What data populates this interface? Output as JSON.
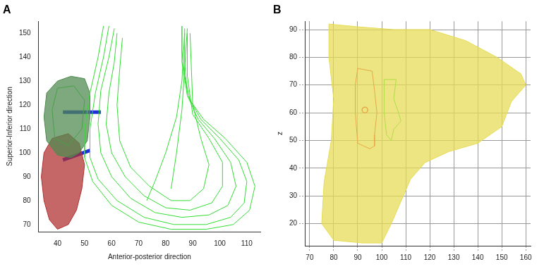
{
  "chart_data": [
    {
      "type": "line",
      "title": "A",
      "x_label": "Anterior-posterior direction",
      "y_label": "Superior-Inferior direction",
      "xlim": [
        33,
        115
      ],
      "xticks": [
        40,
        50,
        60,
        70,
        80,
        90,
        100,
        110
      ],
      "ylim": [
        67,
        155
      ],
      "yticks": [
        70,
        80,
        90,
        100,
        110,
        120,
        130,
        140,
        150
      ],
      "grid": false,
      "series": [
        {
          "color": "#33dd33",
          "x": [
            57,
            55,
            52,
            50,
            50,
            53,
            60,
            70,
            82,
            95,
            105,
            111,
            113,
            110,
            102,
            94,
            89,
            87,
            86,
            86
          ],
          "values": [
            153,
            140,
            125,
            110,
            98,
            88,
            78,
            71,
            68,
            68,
            70,
            76,
            86,
            96,
            106,
            114,
            122,
            132,
            143,
            153
          ]
        },
        {
          "color": "#33dd33",
          "x": [
            59,
            57,
            54,
            52,
            52,
            55,
            62,
            72,
            83,
            95,
            104,
            109,
            110,
            107,
            100,
            93,
            88,
            86,
            86
          ],
          "values": [
            153,
            140,
            125,
            110,
            98,
            89,
            80,
            73,
            70,
            70,
            73,
            79,
            88,
            97,
            106,
            114,
            124,
            138,
            153
          ]
        },
        {
          "color": "#33dd33",
          "x": [
            61,
            59,
            56,
            55,
            56,
            60,
            67,
            76,
            86,
            96,
            103,
            106,
            104,
            98,
            92,
            88,
            87,
            87
          ],
          "values": [
            152,
            140,
            126,
            112,
            100,
            90,
            81,
            75,
            73,
            74,
            78,
            86,
            96,
            106,
            114,
            124,
            138,
            152
          ]
        },
        {
          "color": "#33dd33",
          "x": [
            62,
            61,
            59,
            58,
            60,
            65,
            72,
            80,
            89,
            97,
            101,
            101,
            96,
            90,
            88,
            88
          ],
          "values": [
            150,
            138,
            125,
            112,
            100,
            90,
            82,
            77,
            76,
            79,
            86,
            96,
            106,
            116,
            132,
            150
          ]
        },
        {
          "color": "#33dd33",
          "x": [
            64,
            63,
            62,
            63,
            67,
            74,
            82,
            89,
            94,
            96,
            93,
            90,
            89
          ],
          "values": [
            148,
            135,
            120,
            105,
            94,
            86,
            80,
            80,
            85,
            95,
            106,
            120,
            150
          ]
        },
        {
          "color": "#33dd33",
          "x": [
            87,
            86,
            84,
            80,
            76,
            73
          ],
          "values": [
            150,
            130,
            115,
            100,
            88,
            80
          ]
        },
        {
          "color": "#33dd33",
          "x": [
            88,
            87,
            86,
            84,
            82
          ],
          "values": [
            152,
            135,
            118,
            100,
            85
          ]
        },
        {
          "type": "area",
          "color": "#4f8a4f",
          "x": [
            40,
            45,
            50,
            52,
            52,
            51,
            48,
            45,
            40,
            36,
            35,
            36,
            40
          ],
          "values": [
            130,
            132,
            131,
            125,
            115,
            105,
            100,
            98,
            99,
            105,
            115,
            125,
            130
          ]
        },
        {
          "color": "#33dd33",
          "x": [
            40,
            46,
            50,
            49,
            44,
            39,
            38,
            40
          ],
          "values": [
            127,
            128,
            122,
            110,
            103,
            106,
            118,
            127
          ]
        },
        {
          "type": "area",
          "color": "#b03030",
          "x": [
            38,
            44,
            48,
            50,
            49,
            47,
            44,
            40,
            37,
            35,
            34,
            35,
            38
          ],
          "values": [
            106,
            108,
            104,
            95,
            85,
            76,
            70,
            68,
            72,
            80,
            90,
            100,
            106
          ]
        },
        {
          "color": "#1f2fd6",
          "line_style": "thick",
          "x": [
            42,
            56
          ],
          "values": [
            117,
            117
          ]
        },
        {
          "color": "#1f2fd6",
          "line_style": "thick",
          "x": [
            42,
            52
          ],
          "values": [
            97,
            101
          ]
        }
      ]
    },
    {
      "type": "line",
      "title": "B",
      "y_label": "z",
      "xlim": [
        68,
        162
      ],
      "xticks": [
        70,
        80,
        90,
        100,
        110,
        120,
        130,
        140,
        150,
        160
      ],
      "ylim": [
        12,
        93
      ],
      "yticks": [
        20,
        30,
        40,
        50,
        60,
        70,
        80,
        90
      ],
      "grid": true,
      "series": [
        {
          "type": "area",
          "color": "#e6dc55",
          "x": [
            78,
            90,
            105,
            120,
            135,
            148,
            158,
            160,
            154,
            150,
            140,
            128,
            118,
            112,
            108,
            104,
            100,
            92,
            80,
            75,
            76,
            79,
            80,
            78,
            78
          ],
          "values": [
            92,
            91,
            90,
            90,
            86,
            80,
            74,
            70,
            64,
            55,
            49,
            46,
            42,
            36,
            28,
            20,
            13,
            13,
            14,
            20,
            35,
            50,
            65,
            80,
            92
          ]
        },
        {
          "color": "#e02020",
          "x": [
            90,
            96,
            97,
            98,
            97,
            97,
            95,
            90,
            89,
            89,
            90
          ],
          "values": [
            76,
            75,
            68,
            60,
            52,
            48,
            47,
            49,
            60,
            70,
            76
          ]
        },
        {
          "color": "#e02020",
          "marker": "circle",
          "x": [
            93
          ],
          "values": [
            61
          ]
        },
        {
          "color": "#22dd22",
          "x": [
            101,
            106,
            105,
            107,
            108,
            105,
            104,
            102,
            101,
            101
          ],
          "values": [
            72,
            72,
            65,
            60,
            57,
            54,
            50,
            52,
            60,
            72
          ]
        }
      ]
    }
  ]
}
